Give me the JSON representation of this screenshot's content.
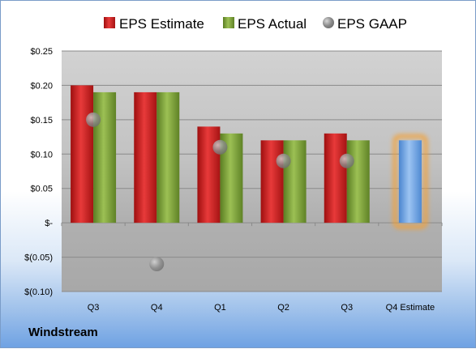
{
  "company": "Windstream",
  "chart_data": {
    "type": "bar",
    "categories": [
      "Q3",
      "Q4",
      "Q1",
      "Q2",
      "Q3",
      "Q4 Estimate"
    ],
    "series": [
      {
        "name": "EPS Estimate",
        "color": "#cc1f1f",
        "values": [
          0.2,
          0.19,
          0.14,
          0.12,
          0.13,
          null
        ]
      },
      {
        "name": "EPS Actual",
        "color": "#7ea33a",
        "values": [
          0.19,
          0.19,
          0.13,
          0.12,
          0.12,
          null
        ]
      },
      {
        "name": "EPS GAAP",
        "color": "#9a9a9a",
        "marker": "circle",
        "values": [
          0.15,
          -0.06,
          0.11,
          0.09,
          0.09,
          null
        ]
      },
      {
        "name": "Q4 Estimate",
        "color": "#6fa5e3",
        "highlight": "#f5a032",
        "values": [
          null,
          null,
          null,
          null,
          null,
          0.12
        ]
      }
    ],
    "ylim": [
      -0.1,
      0.25
    ],
    "yticks": [
      0.25,
      0.2,
      0.15,
      0.1,
      0.05,
      0,
      -0.05,
      -0.1
    ],
    "ytick_labels": [
      "$0.25",
      "$0.20",
      "$0.15",
      "$0.10",
      "$0.05",
      "$-",
      "$(0.05)",
      "$(0.10)"
    ],
    "legend_position": "top",
    "grid": true
  }
}
